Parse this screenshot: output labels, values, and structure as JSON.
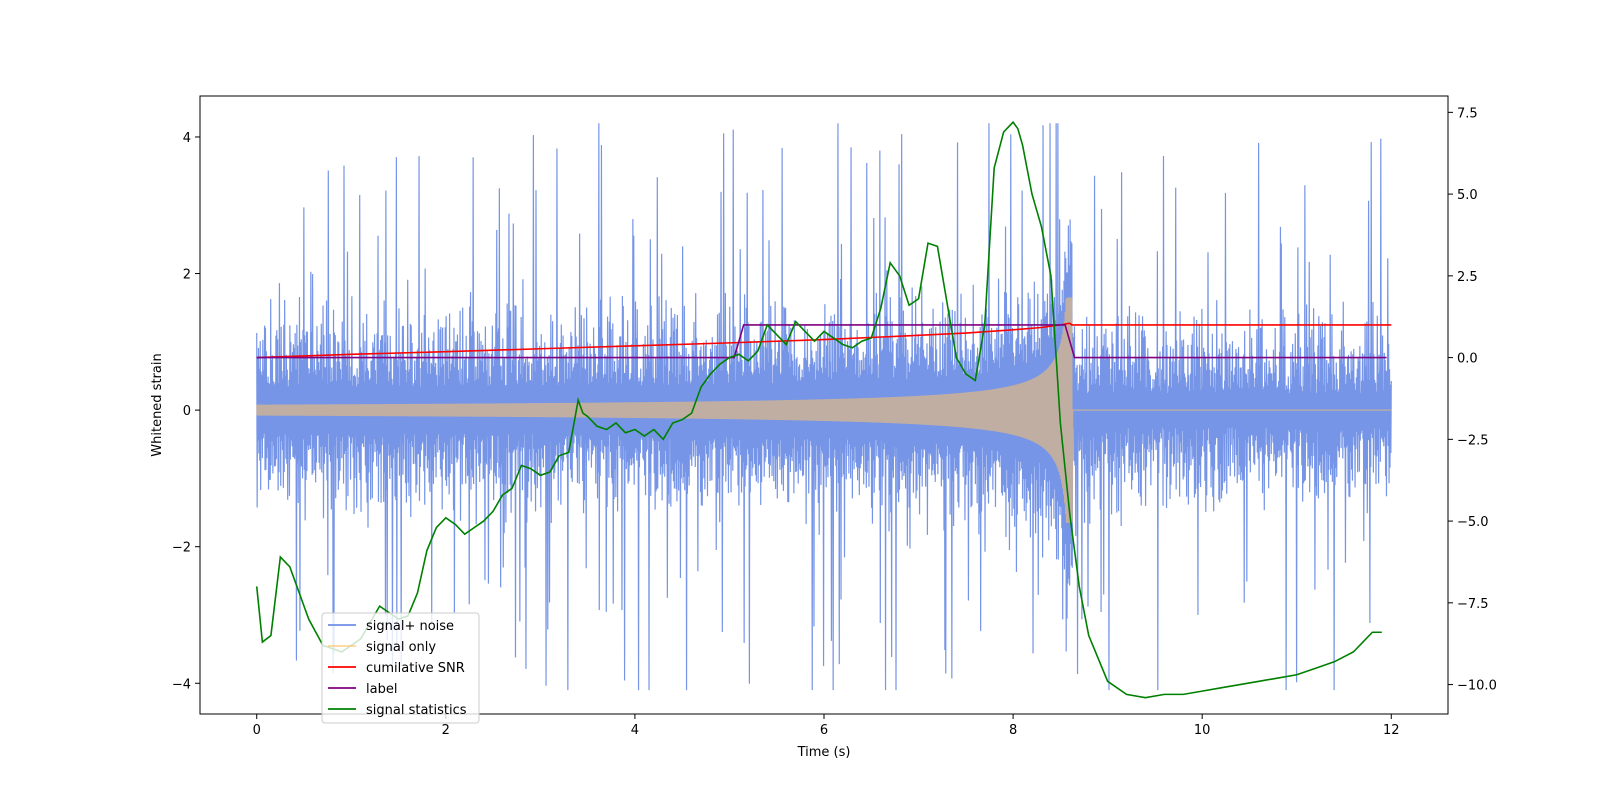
{
  "chart_data": {
    "type": "line",
    "xlabel": "Time (s)",
    "ylabel": "Whitened strain",
    "y2label": "",
    "xlim": [
      -0.6,
      12.6
    ],
    "ylim": [
      -4.45,
      4.6
    ],
    "y2lim": [
      -10.9,
      8.0
    ],
    "x_ticks": [
      0,
      2,
      4,
      6,
      8,
      10,
      12
    ],
    "y_ticks": [
      -4,
      -2,
      0,
      2,
      4
    ],
    "y2_ticks": [
      -10.0,
      -7.5,
      -5.0,
      -2.5,
      0.0,
      2.5,
      5.0,
      7.5
    ],
    "x_tick_labels": [
      "0",
      "2",
      "4",
      "6",
      "8",
      "10",
      "12"
    ],
    "y_tick_labels": [
      "−4",
      "−2",
      "0",
      "2",
      "4"
    ],
    "y2_tick_labels": [
      "−10.0",
      "−7.5",
      "−5.0",
      "−2.5",
      "0.0",
      "2.5",
      "5.0",
      "7.5"
    ],
    "legend_position": "lower-left",
    "series": [
      {
        "name": "signal+ noise",
        "axis": "left",
        "color": "#6f8fe6",
        "kind": "noise_band",
        "x_range": [
          0,
          12
        ],
        "typical_amplitude": 1.9,
        "peak_amplitude": 4.2
      },
      {
        "name": "signal only",
        "axis": "left",
        "color": "#ffc36b",
        "kind": "chirp",
        "x_range": [
          0,
          12
        ],
        "merger_time": 8.6,
        "amplitude_start": 0.1,
        "amplitude_peak": 1.65
      },
      {
        "name": "cumilative SNR",
        "axis": "right",
        "color": "#ff0000",
        "x": [
          0,
          1,
          2,
          3,
          4,
          5,
          6,
          7,
          7.5,
          8,
          8.3,
          8.5,
          8.6,
          8.62,
          9,
          10,
          11,
          12
        ],
        "values": [
          0.0,
          0.1,
          0.18,
          0.27,
          0.36,
          0.45,
          0.55,
          0.68,
          0.75,
          0.85,
          0.92,
          1.0,
          1.05,
          1.0,
          1.0,
          1.0,
          1.0,
          1.0
        ]
      },
      {
        "name": "label",
        "axis": "right",
        "color": "#800080",
        "x": [
          0,
          5.05,
          5.15,
          8.55,
          8.65,
          11.95
        ],
        "values": [
          0,
          0,
          1,
          1,
          0,
          0
        ]
      },
      {
        "name": "signal statistics",
        "axis": "right",
        "color": "#008000",
        "x": [
          0,
          0.06,
          0.15,
          0.25,
          0.35,
          0.45,
          0.55,
          0.7,
          0.9,
          1.1,
          1.3,
          1.5,
          1.6,
          1.7,
          1.8,
          1.9,
          2.0,
          2.1,
          2.2,
          2.3,
          2.4,
          2.5,
          2.6,
          2.7,
          2.8,
          2.9,
          3.0,
          3.1,
          3.2,
          3.3,
          3.4,
          3.45,
          3.5,
          3.6,
          3.7,
          3.8,
          3.9,
          4.0,
          4.1,
          4.2,
          4.3,
          4.4,
          4.5,
          4.6,
          4.7,
          4.8,
          4.9,
          5.0,
          5.1,
          5.2,
          5.3,
          5.4,
          5.5,
          5.6,
          5.7,
          5.8,
          5.9,
          6.0,
          6.1,
          6.2,
          6.3,
          6.4,
          6.5,
          6.6,
          6.7,
          6.8,
          6.9,
          7.0,
          7.1,
          7.2,
          7.3,
          7.4,
          7.5,
          7.6,
          7.7,
          7.8,
          7.9,
          8.0,
          8.05,
          8.1,
          8.2,
          8.3,
          8.4,
          8.5,
          8.6,
          8.7,
          8.8,
          9.0,
          9.2,
          9.4,
          9.6,
          9.8,
          10.0,
          10.2,
          10.4,
          10.6,
          10.8,
          11.0,
          11.2,
          11.4,
          11.6,
          11.8,
          11.9
        ],
        "values": [
          -7.0,
          -8.7,
          -8.5,
          -6.1,
          -6.4,
          -7.2,
          -8.0,
          -8.8,
          -9.0,
          -8.6,
          -7.6,
          -8.0,
          -7.9,
          -7.2,
          -5.9,
          -5.2,
          -4.9,
          -5.1,
          -5.4,
          -5.2,
          -5.0,
          -4.7,
          -4.2,
          -4.0,
          -3.3,
          -3.4,
          -3.6,
          -3.5,
          -3.0,
          -2.9,
          -1.3,
          -1.7,
          -1.8,
          -2.1,
          -2.2,
          -2.0,
          -2.3,
          -2.2,
          -2.4,
          -2.2,
          -2.5,
          -2.0,
          -1.9,
          -1.7,
          -0.9,
          -0.5,
          -0.2,
          0.0,
          0.1,
          -0.1,
          0.2,
          1.0,
          0.7,
          0.4,
          1.1,
          0.8,
          0.5,
          0.8,
          0.6,
          0.4,
          0.3,
          0.5,
          0.6,
          1.5,
          2.9,
          2.5,
          1.6,
          1.8,
          3.5,
          3.4,
          1.7,
          0.0,
          -0.5,
          -0.7,
          1.0,
          5.8,
          6.9,
          7.2,
          7.0,
          6.5,
          5.0,
          4.0,
          2.5,
          -2.0,
          -4.8,
          -7.0,
          -8.5,
          -9.9,
          -10.3,
          -10.4,
          -10.3,
          -10.3,
          -10.2,
          -10.1,
          -10.0,
          -9.9,
          -9.8,
          -9.7,
          -9.5,
          -9.3,
          -9.0,
          -8.4,
          -8.4
        ]
      }
    ]
  }
}
